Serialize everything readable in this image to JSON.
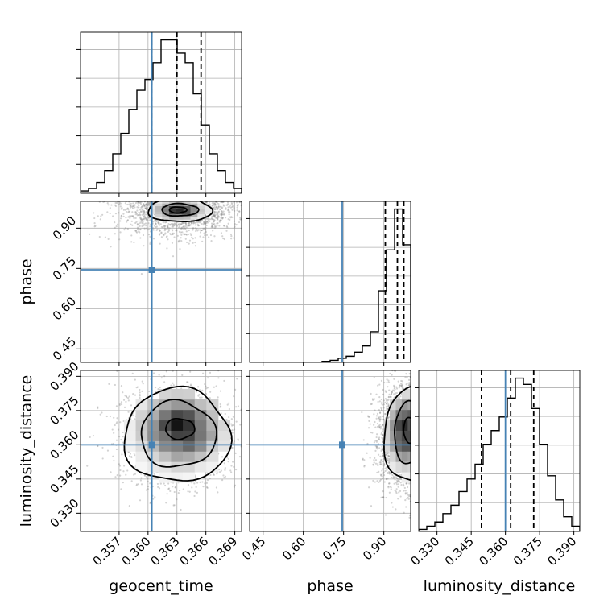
{
  "colors": {
    "truth": "#4682b4",
    "ink": "#000000",
    "grid": "#b0b0b0",
    "scatter": "#808080"
  },
  "chart_data": {
    "type": "corner",
    "grid": true,
    "parameters": [
      {
        "name": "geocent_time",
        "label": "geocent_time",
        "range": [
          0.353,
          0.3697
        ],
        "ticks": [
          0.357,
          0.36,
          0.363,
          0.366,
          0.369
        ],
        "tick_labels": [
          "0.357",
          "0.360",
          "0.363",
          "0.366",
          "0.369"
        ],
        "truth": 0.3604,
        "quantiles": [
          0.3604,
          0.363,
          0.3655
        ]
      },
      {
        "name": "phase",
        "label": "phase",
        "range": [
          0.4,
          1.0
        ],
        "ticks": [
          0.45,
          0.6,
          0.75,
          0.9
        ],
        "tick_labels": [
          "0.45",
          "0.60",
          "0.75",
          "0.90"
        ],
        "truth": 0.745,
        "quantiles": [
          0.9055,
          0.9505,
          0.9745
        ]
      },
      {
        "name": "luminosity_distance",
        "label": "luminosity_distance",
        "range": [
          0.322,
          0.3926
        ],
        "ticks": [
          0.33,
          0.345,
          0.36,
          0.375,
          0.39
        ],
        "tick_labels": [
          "0.330",
          "0.345",
          "0.360",
          "0.375",
          "0.390"
        ],
        "truth": 0.36,
        "quantiles": [
          0.3495,
          0.3623,
          0.3724
        ]
      }
    ],
    "histograms": [
      {
        "param": "geocent_time",
        "bin_start": 0.353,
        "bin_width": 0.000835,
        "counts": [
          2,
          4,
          9,
          19,
          33,
          50,
          70,
          86,
          95,
          109,
          128,
          128,
          117,
          109,
          83,
          57,
          33,
          19,
          9,
          4
        ]
      },
      {
        "param": "phase",
        "bin_start": 0.4,
        "bin_width": 0.03,
        "counts": [
          0,
          0,
          0,
          0,
          0,
          0,
          0,
          0,
          0,
          1,
          2,
          4,
          6,
          10,
          16,
          30,
          70,
          110,
          150,
          115
        ]
      },
      {
        "param": "luminosity_distance",
        "bin_start": 0.322,
        "bin_width": 0.00353,
        "counts": [
          2,
          5,
          9,
          17,
          25,
          38,
          50,
          64,
          83,
          96,
          109,
          127,
          146,
          140,
          117,
          83,
          53,
          30,
          14,
          5
        ]
      }
    ],
    "pairs": [
      {
        "x": "geocent_time",
        "y": "phase",
        "center": [
          0.3633,
          0.965
        ],
        "spread": [
          0.0032,
          0.05
        ],
        "cap_y": 1.0,
        "density_peak": [
          0.3632,
          0.968
        ],
        "contours": [
          {
            "cx": 0.3633,
            "cy": 0.968,
            "rx": 0.0033,
            "ry": 0.045
          },
          {
            "cx": 0.3633,
            "cy": 0.968,
            "rx": 0.0019,
            "ry": 0.023
          },
          {
            "cx": 0.3631,
            "cy": 0.968,
            "rx": 0.0009,
            "ry": 0.011
          }
        ]
      },
      {
        "x": "geocent_time",
        "y": "luminosity_distance",
        "center": [
          0.363,
          0.364
        ],
        "spread": [
          0.0031,
          0.0115
        ],
        "cap_y": null,
        "density_peak": [
          0.3634,
          0.367
        ],
        "contours": [
          {
            "cx": 0.363,
            "cy": 0.364,
            "rx": 0.0055,
            "ry": 0.0205
          },
          {
            "cx": 0.3631,
            "cy": 0.3645,
            "rx": 0.0039,
            "ry": 0.0145
          },
          {
            "cx": 0.3633,
            "cy": 0.367,
            "rx": 0.0015,
            "ry": 0.0045
          }
        ]
      },
      {
        "x": "phase",
        "y": "luminosity_distance",
        "center": [
          0.965,
          0.364
        ],
        "spread": [
          0.05,
          0.0115
        ],
        "cap_x": 1.0,
        "density_peak": [
          0.985,
          0.366
        ],
        "contours": [
          {
            "cx": 1.0,
            "cy": 0.364,
            "rx": 0.1,
            "ry": 0.0205
          },
          {
            "cx": 1.0,
            "cy": 0.365,
            "rx": 0.062,
            "ry": 0.0135
          },
          {
            "cx": 1.0,
            "cy": 0.3665,
            "rx": 0.027,
            "ry": 0.0055
          }
        ]
      }
    ]
  }
}
